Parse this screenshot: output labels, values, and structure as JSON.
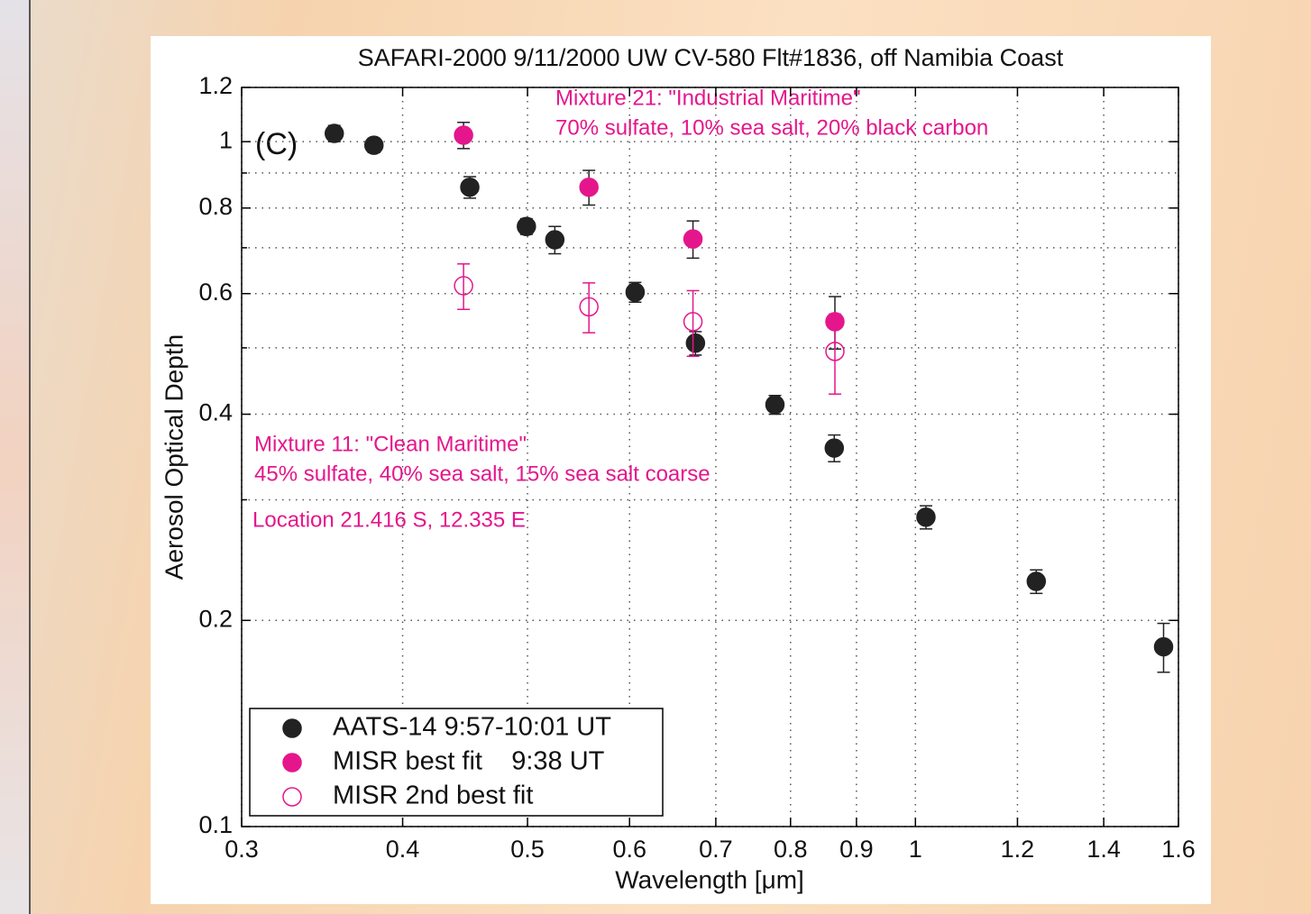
{
  "chart_data": {
    "type": "scatter",
    "title": "SAFARI-2000  9/11/2000 UW CV-580 Flt#1836, off Namibia Coast",
    "x_label": "Wavelength [μm]",
    "y_label": "Aerosol Optical Depth",
    "panel_label": "(C)",
    "annotations": [
      "Mixture 21: \"Industrial Maritime\"",
      "70% sulfate, 10% sea salt, 20% black carbon",
      "Mixture 11: \"Clean Maritime\"",
      "45% sulfate, 40% sea salt, 15% sea salt coarse",
      "Location  21.416 S, 12.335 E"
    ],
    "x_log": true,
    "y_log": true,
    "grid": true,
    "xlim": [
      0.3,
      1.6
    ],
    "ylim": [
      0.1,
      1.2
    ],
    "xticks": [
      0.3,
      0.4,
      0.5,
      0.6,
      0.7,
      0.8,
      0.9,
      1,
      1.2,
      1.4,
      1.6
    ],
    "yticks": [
      0.1,
      0.2,
      0.4,
      0.6,
      0.8,
      1,
      1.2
    ],
    "y_minor_grid": [
      0.3,
      0.5,
      0.7,
      0.9
    ],
    "legend": "lower left",
    "series": [
      {
        "name": "AATS-14 9:57-10:01 UT",
        "color": "#222222",
        "marker": "filled",
        "x": [
          0.354,
          0.38,
          0.451,
          0.499,
          0.525,
          0.606,
          0.675,
          0.778,
          0.865,
          1.019,
          1.241,
          1.558
        ],
        "values": [
          1.028,
          0.988,
          0.858,
          0.752,
          0.719,
          0.603,
          0.508,
          0.413,
          0.357,
          0.283,
          0.228,
          0.183
        ],
        "yerr": [
          0.028,
          0.024,
          0.031,
          0.02,
          0.033,
          0.02,
          0.02,
          0.013,
          0.016,
          0.011,
          0.009,
          0.015
        ]
      },
      {
        "name": "MISR best fit    9:38 UT",
        "color": "#e5168c",
        "marker": "filled",
        "x": [
          0.446,
          0.558,
          0.672,
          0.866
        ],
        "values": [
          1.022,
          0.858,
          0.721,
          0.546
        ],
        "yerr": [
          0.045,
          0.05,
          0.045,
          0.048
        ]
      },
      {
        "name": "MISR 2nd best fit",
        "color": "#e5168c",
        "marker": "open",
        "x": [
          0.446,
          0.558,
          0.672,
          0.866
        ],
        "values": [
          0.616,
          0.574,
          0.546,
          0.494
        ],
        "yerr": [
          0.047,
          0.048,
          0.06,
          0.066
        ]
      }
    ]
  }
}
